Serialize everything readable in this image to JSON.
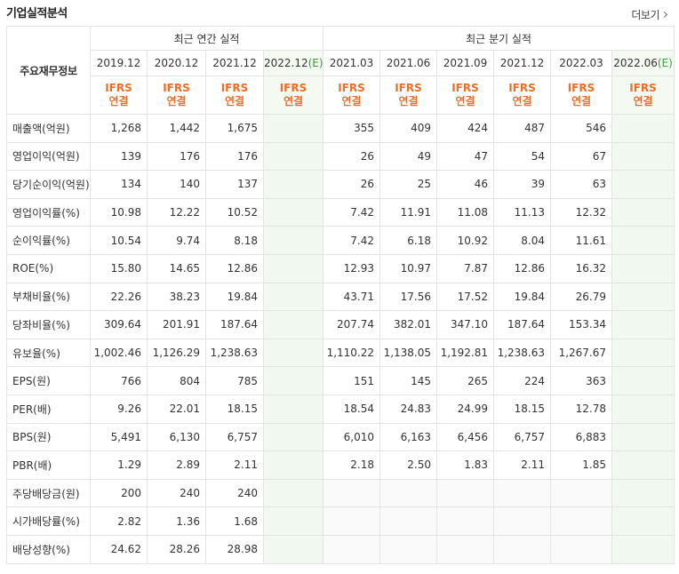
{
  "title": "기업실적분석",
  "more_label": "더보기",
  "row_header": "주요재무정보",
  "annual_label": "최근 연간 실적",
  "quarter_label": "최근 분기 실적",
  "annual_periods": [
    "2019.12",
    "2020.12",
    "2021.12",
    "2022.12"
  ],
  "annual_estimate_suffix": "(E)",
  "quarter_periods": [
    "2021.03",
    "2021.06",
    "2021.09",
    "2021.12",
    "2022.03",
    "2022.06"
  ],
  "quarter_estimate_suffix": "(E)",
  "ifrs_top": "IFRS",
  "ifrs_bottom": "연결",
  "rows": [
    {
      "label": "매출액(억원)",
      "annual": [
        "1,268",
        "1,442",
        "1,675",
        ""
      ],
      "quarter": [
        "355",
        "409",
        "424",
        "487",
        "546",
        ""
      ]
    },
    {
      "label": "영업이익(억원)",
      "annual": [
        "139",
        "176",
        "176",
        ""
      ],
      "quarter": [
        "26",
        "49",
        "47",
        "54",
        "67",
        ""
      ]
    },
    {
      "label": "당기순이익(억원)",
      "annual": [
        "134",
        "140",
        "137",
        ""
      ],
      "quarter": [
        "26",
        "25",
        "46",
        "39",
        "63",
        ""
      ]
    },
    {
      "label": "영업이익률(%)",
      "annual": [
        "10.98",
        "12.22",
        "10.52",
        ""
      ],
      "quarter": [
        "7.42",
        "11.91",
        "11.08",
        "11.13",
        "12.32",
        ""
      ]
    },
    {
      "label": "순이익률(%)",
      "annual": [
        "10.54",
        "9.74",
        "8.18",
        ""
      ],
      "quarter": [
        "7.42",
        "6.18",
        "10.92",
        "8.04",
        "11.61",
        ""
      ]
    },
    {
      "label": "ROE(%)",
      "annual": [
        "15.80",
        "14.65",
        "12.86",
        ""
      ],
      "quarter": [
        "12.93",
        "10.97",
        "7.87",
        "12.86",
        "16.32",
        ""
      ]
    },
    {
      "label": "부채비율(%)",
      "annual": [
        "22.26",
        "38.23",
        "19.84",
        ""
      ],
      "quarter": [
        "43.71",
        "17.56",
        "17.52",
        "19.84",
        "26.79",
        ""
      ]
    },
    {
      "label": "당좌비율(%)",
      "annual": [
        "309.64",
        "201.91",
        "187.64",
        ""
      ],
      "quarter": [
        "207.74",
        "382.01",
        "347.10",
        "187.64",
        "153.34",
        ""
      ]
    },
    {
      "label": "유보율(%)",
      "annual": [
        "1,002.46",
        "1,126.29",
        "1,238.63",
        ""
      ],
      "quarter": [
        "1,110.22",
        "1,138.05",
        "1,192.81",
        "1,238.63",
        "1,267.67",
        ""
      ]
    },
    {
      "label": "EPS(원)",
      "annual": [
        "766",
        "804",
        "785",
        ""
      ],
      "quarter": [
        "151",
        "145",
        "265",
        "224",
        "363",
        ""
      ]
    },
    {
      "label": "PER(배)",
      "annual": [
        "9.26",
        "22.01",
        "18.15",
        ""
      ],
      "quarter": [
        "18.54",
        "24.83",
        "24.99",
        "18.15",
        "12.78",
        ""
      ]
    },
    {
      "label": "BPS(원)",
      "annual": [
        "5,491",
        "6,130",
        "6,757",
        ""
      ],
      "quarter": [
        "6,010",
        "6,163",
        "6,456",
        "6,757",
        "6,883",
        ""
      ]
    },
    {
      "label": "PBR(배)",
      "annual": [
        "1.29",
        "2.89",
        "2.11",
        ""
      ],
      "quarter": [
        "2.18",
        "2.50",
        "1.83",
        "2.11",
        "1.85",
        ""
      ]
    },
    {
      "label": "주당배당금(원)",
      "annual": [
        "200",
        "240",
        "240",
        ""
      ],
      "quarter": [
        "",
        "",
        "",
        "",
        "",
        ""
      ]
    },
    {
      "label": "시가배당률(%)",
      "annual": [
        "2.82",
        "1.36",
        "1.68",
        ""
      ],
      "quarter": [
        "",
        "",
        "",
        "",
        "",
        ""
      ]
    },
    {
      "label": "배당성향(%)",
      "annual": [
        "24.62",
        "28.26",
        "28.98",
        ""
      ],
      "quarter": [
        "",
        "",
        "",
        "",
        "",
        ""
      ]
    }
  ]
}
